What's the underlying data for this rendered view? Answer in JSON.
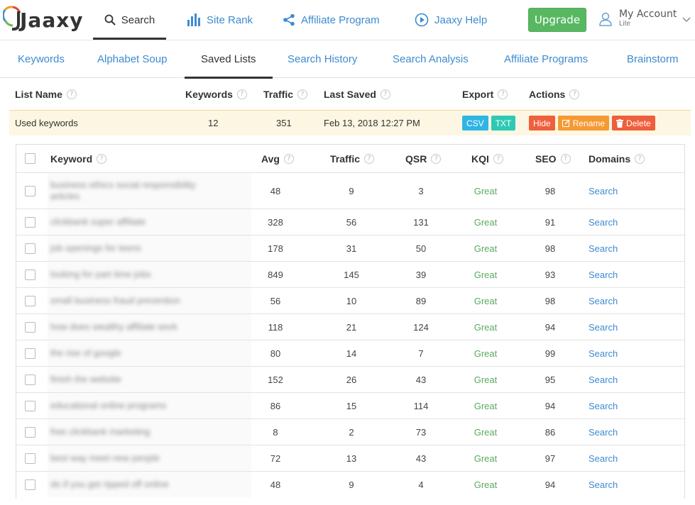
{
  "app": {
    "logo_text": "Jaaxy"
  },
  "topnav": {
    "search": "Search",
    "site_rank": "Site Rank",
    "affiliate_program": "Affiliate Program",
    "help": "Jaaxy Help",
    "upgrade": "Upgrade",
    "account_name": "My Account",
    "account_level": "Lite"
  },
  "subtabs": [
    "Keywords",
    "Alphabet Soup",
    "Saved Lists",
    "Search History",
    "Search Analysis",
    "Affiliate Programs",
    "Brainstorm"
  ],
  "active_subtab": "Saved Lists",
  "lists_header": {
    "list_name": "List Name",
    "keywords": "Keywords",
    "traffic": "Traffic",
    "last_saved": "Last Saved",
    "export": "Export",
    "actions": "Actions"
  },
  "list_row": {
    "name": "Used keywords",
    "keywords": "12",
    "traffic": "351",
    "last_saved": "Feb 13, 2018 12:27 PM",
    "export": {
      "csv": "CSV",
      "txt": "TXT"
    },
    "actions": {
      "hide": "Hide",
      "rename": "Rename",
      "delete": "Delete"
    }
  },
  "table_header": {
    "keyword": "Keyword",
    "avg": "Avg",
    "traffic": "Traffic",
    "qsr": "QSR",
    "kqi": "KQI",
    "seo": "SEO",
    "domains": "Domains"
  },
  "rows": [
    {
      "keyword": "business ethics social responsibility articles",
      "avg": "48",
      "traffic": "9",
      "qsr": "3",
      "kqi": "Great",
      "seo": "98",
      "domains": "Search"
    },
    {
      "keyword": "clickbank super affiliate",
      "avg": "328",
      "traffic": "56",
      "qsr": "131",
      "kqi": "Great",
      "seo": "91",
      "domains": "Search"
    },
    {
      "keyword": "job openings for teens",
      "avg": "178",
      "traffic": "31",
      "qsr": "50",
      "kqi": "Great",
      "seo": "98",
      "domains": "Search"
    },
    {
      "keyword": "looking for part time jobs",
      "avg": "849",
      "traffic": "145",
      "qsr": "39",
      "kqi": "Great",
      "seo": "93",
      "domains": "Search"
    },
    {
      "keyword": "small business fraud prevention",
      "avg": "56",
      "traffic": "10",
      "qsr": "89",
      "kqi": "Great",
      "seo": "98",
      "domains": "Search"
    },
    {
      "keyword": "how does wealthy affiliate work",
      "avg": "118",
      "traffic": "21",
      "qsr": "124",
      "kqi": "Great",
      "seo": "94",
      "domains": "Search"
    },
    {
      "keyword": "the rise of google",
      "avg": "80",
      "traffic": "14",
      "qsr": "7",
      "kqi": "Great",
      "seo": "99",
      "domains": "Search"
    },
    {
      "keyword": "finish the website",
      "avg": "152",
      "traffic": "26",
      "qsr": "43",
      "kqi": "Great",
      "seo": "95",
      "domains": "Search"
    },
    {
      "keyword": "educational online programs",
      "avg": "86",
      "traffic": "15",
      "qsr": "114",
      "kqi": "Great",
      "seo": "94",
      "domains": "Search"
    },
    {
      "keyword": "free clickbank marketing",
      "avg": "8",
      "traffic": "2",
      "qsr": "73",
      "kqi": "Great",
      "seo": "86",
      "domains": "Search"
    },
    {
      "keyword": "best way meet new people",
      "avg": "72",
      "traffic": "13",
      "qsr": "43",
      "kqi": "Great",
      "seo": "97",
      "domains": "Search"
    },
    {
      "keyword": "do if you get ripped off online",
      "avg": "48",
      "traffic": "9",
      "qsr": "4",
      "kqi": "Great",
      "seo": "94",
      "domains": "Search"
    }
  ],
  "colors": {
    "link": "#3d8bd0",
    "upgrade": "#58b862",
    "great": "#5caa5c",
    "highlight_row": "#fdf6e3"
  }
}
